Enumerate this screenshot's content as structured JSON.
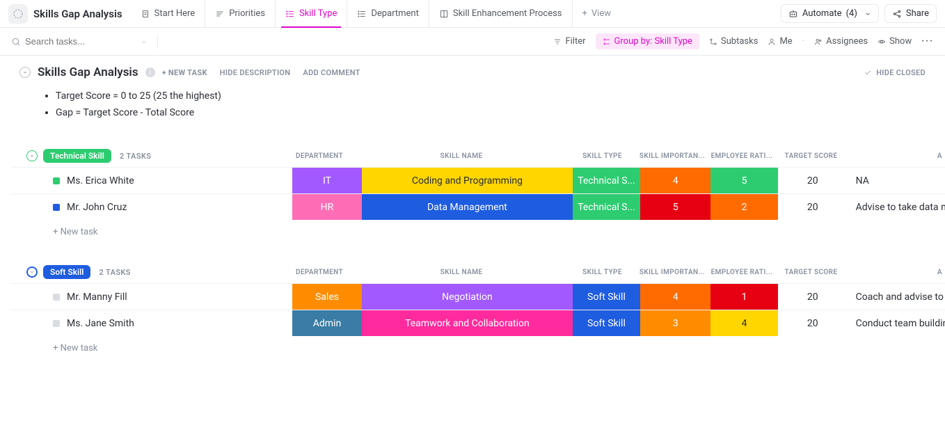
{
  "colors": {
    "accent_pink": "#e006ce",
    "purple": "#a259ff",
    "yellow": "#ffd600",
    "green": "#2ecc71",
    "orange": "#ff6b00",
    "red": "#e60012",
    "pink": "#ff6db6",
    "blue": "#1e5ce0",
    "orange2": "#ff8c00",
    "steel": "#3a7ca5",
    "magenta": "#ff2a9d"
  },
  "topbar": {
    "title": "Skills Gap Analysis",
    "tabs": [
      {
        "id": "start",
        "label": "Start Here",
        "active": false
      },
      {
        "id": "priorities",
        "label": "Priorities",
        "active": false
      },
      {
        "id": "skilltype",
        "label": "Skill Type",
        "active": true
      },
      {
        "id": "department",
        "label": "Department",
        "active": false
      },
      {
        "id": "process",
        "label": "Skill Enhancement Process",
        "active": false
      }
    ],
    "add_view_label": "View",
    "automate_label": "Automate",
    "automate_count": "(4)",
    "share_label": "Share"
  },
  "toolbar": {
    "search_placeholder": "Search tasks...",
    "filter_label": "Filter",
    "group_by_label": "Group by: Skill Type",
    "subtasks_label": "Subtasks",
    "me_label": "Me",
    "assignees_label": "Assignees",
    "show_label": "Show"
  },
  "header": {
    "title": "Skills Gap Analysis",
    "new_task_label": "+ NEW TASK",
    "hide_desc_label": "HIDE DESCRIPTION",
    "add_comment_label": "ADD COMMENT",
    "hide_closed_label": "HIDE CLOSED",
    "desc_lines": [
      "Target Score = 0 to 25 (25 the highest)",
      "Gap = Target Score - Total Score"
    ]
  },
  "columns": {
    "department": "DEPARTMENT",
    "skill_name": "SKILL NAME",
    "skill_type": "SKILL TYPE",
    "skill_importance": "SKILL IMPORTAN...",
    "employee_rating": "EMPLOYEE RATI...",
    "target_score": "TARGET SCORE",
    "assessment": "A"
  },
  "new_task_row_label": "+ New task",
  "groups": [
    {
      "id": "tech",
      "pill": "Technical Skill",
      "pill_class": "green",
      "chev_class": "green",
      "task_count": "2 TASKS",
      "rows": [
        {
          "status_class": "green",
          "name": "Ms. Erica White",
          "dept": "IT",
          "dept_bg": "#a259ff",
          "skill": "Coding and Programming",
          "skill_bg": "#ffd600",
          "skill_fg": "#2a2e34",
          "type": "Technical S...",
          "type_bg": "#2ecc71",
          "imp": "4",
          "imp_bg": "#ff6b00",
          "rat": "5",
          "rat_bg": "#2ecc71",
          "target": "20",
          "assess": "NA"
        },
        {
          "status_class": "blue",
          "name": "Mr. John Cruz",
          "dept": "HR",
          "dept_bg": "#ff6db6",
          "skill": "Data Management",
          "skill_bg": "#1e5ce0",
          "type": "Technical S...",
          "type_bg": "#2ecc71",
          "imp": "5",
          "imp_bg": "#e60012",
          "rat": "2",
          "rat_bg": "#ff6b00",
          "target": "20",
          "assess": "Advise to take data mana"
        }
      ]
    },
    {
      "id": "soft",
      "pill": "Soft Skill",
      "pill_class": "blue",
      "chev_class": "blue",
      "task_count": "2 TASKS",
      "rows": [
        {
          "status_class": "grey",
          "name": "Mr. Manny Fill",
          "dept": "Sales",
          "dept_bg": "#ff8c00",
          "skill": "Negotiation",
          "skill_bg": "#a259ff",
          "type": "Soft Skill",
          "type_bg": "#1e5ce0",
          "imp": "4",
          "imp_bg": "#ff6b00",
          "rat": "1",
          "rat_bg": "#e60012",
          "target": "20",
          "assess": "Coach and advise to take"
        },
        {
          "status_class": "grey",
          "name": "Ms. Jane Smith",
          "dept": "Admin",
          "dept_bg": "#3a7ca5",
          "skill": "Teamwork and Collaboration",
          "skill_bg": "#ff2a9d",
          "type": "Soft Skill",
          "type_bg": "#1e5ce0",
          "imp": "3",
          "imp_bg": "#ff8c00",
          "rat": "4",
          "rat_bg": "#ffd600",
          "rat_fg": "#2a2e34",
          "target": "20",
          "assess": "Conduct team building ac"
        }
      ]
    }
  ]
}
